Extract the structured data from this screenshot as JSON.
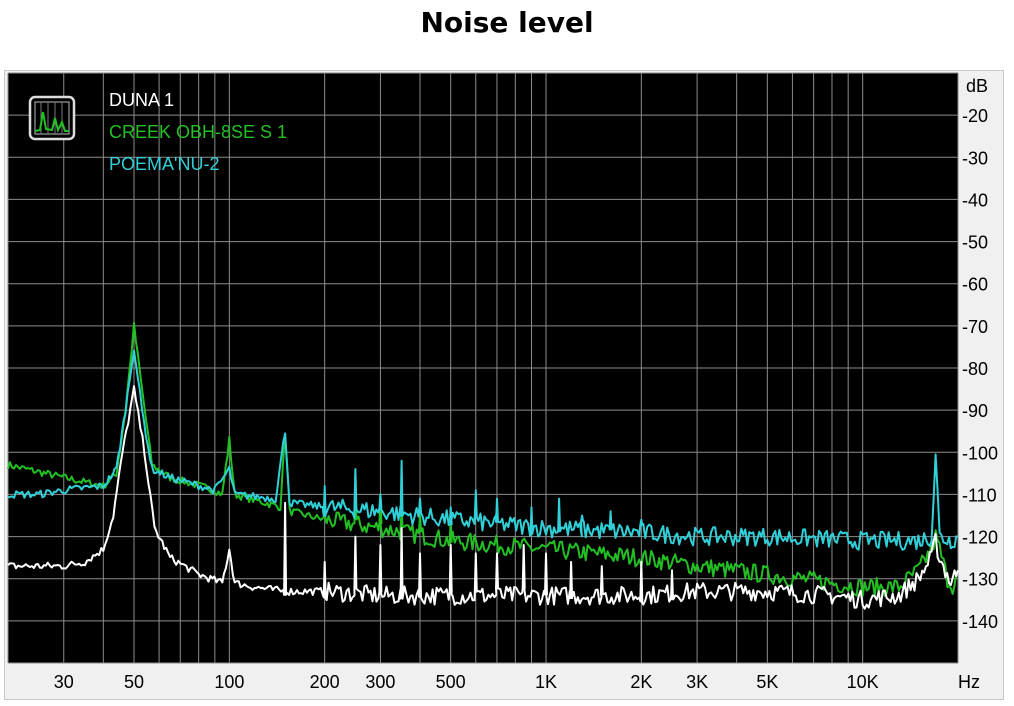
{
  "chart_data": {
    "type": "line",
    "title": "Noise level",
    "x_unit": "Hz",
    "y_unit": "dB",
    "x_scale": "log",
    "xlim": [
      20,
      20000
    ],
    "ylim": [
      -150,
      -10
    ],
    "grid": true,
    "legend_placement": "top-left",
    "x_ticks": [
      {
        "v": 30,
        "label": "30"
      },
      {
        "v": 50,
        "label": "50"
      },
      {
        "v": 100,
        "label": "100"
      },
      {
        "v": 200,
        "label": "200"
      },
      {
        "v": 300,
        "label": "300"
      },
      {
        "v": 500,
        "label": "500"
      },
      {
        "v": 1000,
        "label": "1K"
      },
      {
        "v": 2000,
        "label": "2K"
      },
      {
        "v": 3000,
        "label": "3K"
      },
      {
        "v": 5000,
        "label": "5K"
      },
      {
        "v": 10000,
        "label": "10K"
      }
    ],
    "y_ticks": [
      -20,
      -30,
      -40,
      -50,
      -60,
      -70,
      -80,
      -90,
      -100,
      -110,
      -120,
      -130,
      -140
    ],
    "series": [
      {
        "name": "DUNA 1",
        "color": "#ffffff",
        "points": [
          [
            20,
            -127
          ],
          [
            30,
            -127
          ],
          [
            35,
            -126
          ],
          [
            40,
            -123
          ],
          [
            43,
            -115
          ],
          [
            46,
            -100
          ],
          [
            50,
            -85
          ],
          [
            54,
            -100
          ],
          [
            58,
            -118
          ],
          [
            65,
            -125
          ],
          [
            80,
            -129
          ],
          [
            95,
            -131
          ],
          [
            100,
            -123
          ],
          [
            104,
            -131
          ],
          [
            120,
            -132
          ],
          [
            150,
            -133
          ],
          [
            200,
            -133
          ],
          [
            300,
            -134
          ],
          [
            500,
            -134
          ],
          [
            1000,
            -134
          ],
          [
            2000,
            -134
          ],
          [
            3000,
            -133
          ],
          [
            5000,
            -133
          ],
          [
            8000,
            -134
          ],
          [
            10000,
            -135
          ],
          [
            13000,
            -134
          ],
          [
            15000,
            -130
          ],
          [
            16500,
            -125
          ],
          [
            17000,
            -121
          ],
          [
            17500,
            -125
          ],
          [
            19000,
            -131
          ],
          [
            20000,
            -128
          ]
        ],
        "spikes": [
          [
            150,
            -112
          ],
          [
            200,
            -126
          ],
          [
            250,
            -120
          ],
          [
            300,
            -122
          ],
          [
            350,
            -118
          ],
          [
            400,
            -124
          ],
          [
            500,
            -122
          ],
          [
            600,
            -124
          ],
          [
            700,
            -124
          ],
          [
            850,
            -122
          ],
          [
            1000,
            -124
          ],
          [
            1200,
            -126
          ],
          [
            1500,
            -127
          ],
          [
            2000,
            -126
          ],
          [
            2500,
            -128
          ]
        ]
      },
      {
        "name": "CREEK OBH-8SE S 1",
        "color": "#22c022",
        "points": [
          [
            20,
            -103
          ],
          [
            30,
            -106
          ],
          [
            40,
            -108
          ],
          [
            44,
            -105
          ],
          [
            47,
            -90
          ],
          [
            50,
            -70
          ],
          [
            53,
            -85
          ],
          [
            57,
            -103
          ],
          [
            65,
            -106
          ],
          [
            90,
            -109
          ],
          [
            95,
            -110
          ],
          [
            100,
            -97
          ],
          [
            104,
            -110
          ],
          [
            130,
            -112
          ],
          [
            145,
            -113
          ],
          [
            150,
            -95
          ],
          [
            155,
            -114
          ],
          [
            200,
            -116
          ],
          [
            300,
            -118
          ],
          [
            500,
            -121
          ],
          [
            1000,
            -123
          ],
          [
            2000,
            -125
          ],
          [
            3000,
            -127
          ],
          [
            5000,
            -129
          ],
          [
            8000,
            -131
          ],
          [
            10000,
            -132
          ],
          [
            13000,
            -132
          ],
          [
            15000,
            -128
          ],
          [
            16500,
            -123
          ],
          [
            17000,
            -120
          ],
          [
            17500,
            -123
          ],
          [
            18500,
            -130
          ],
          [
            19500,
            -132
          ],
          [
            20000,
            -128
          ]
        ],
        "spikes": [
          [
            250,
            -105
          ],
          [
            300,
            -110
          ],
          [
            350,
            -114
          ],
          [
            400,
            -115
          ],
          [
            500,
            -116
          ]
        ]
      },
      {
        "name": "POEMA'NU-2",
        "color": "#30d0d8",
        "points": [
          [
            20,
            -110
          ],
          [
            25,
            -110
          ],
          [
            30,
            -109
          ],
          [
            40,
            -108
          ],
          [
            44,
            -104
          ],
          [
            47,
            -90
          ],
          [
            50,
            -75
          ],
          [
            53,
            -90
          ],
          [
            57,
            -104
          ],
          [
            65,
            -106
          ],
          [
            90,
            -109
          ],
          [
            100,
            -104
          ],
          [
            104,
            -110
          ],
          [
            140,
            -111
          ],
          [
            150,
            -95
          ],
          [
            155,
            -112
          ],
          [
            200,
            -113
          ],
          [
            300,
            -114
          ],
          [
            500,
            -116
          ],
          [
            1000,
            -118
          ],
          [
            2000,
            -119
          ],
          [
            3000,
            -120
          ],
          [
            5000,
            -120
          ],
          [
            10000,
            -121
          ],
          [
            15000,
            -121
          ],
          [
            16500,
            -120
          ],
          [
            17000,
            -100
          ],
          [
            17500,
            -120
          ],
          [
            19000,
            -121
          ],
          [
            20000,
            -120
          ]
        ],
        "spikes": [
          [
            200,
            -108
          ],
          [
            250,
            -104
          ],
          [
            300,
            -110
          ],
          [
            350,
            -102
          ],
          [
            400,
            -111
          ],
          [
            500,
            -113
          ],
          [
            600,
            -109
          ],
          [
            700,
            -111
          ],
          [
            900,
            -113
          ],
          [
            1100,
            -111
          ],
          [
            1300,
            -115
          ],
          [
            1600,
            -114
          ],
          [
            2000,
            -116
          ]
        ]
      }
    ]
  }
}
